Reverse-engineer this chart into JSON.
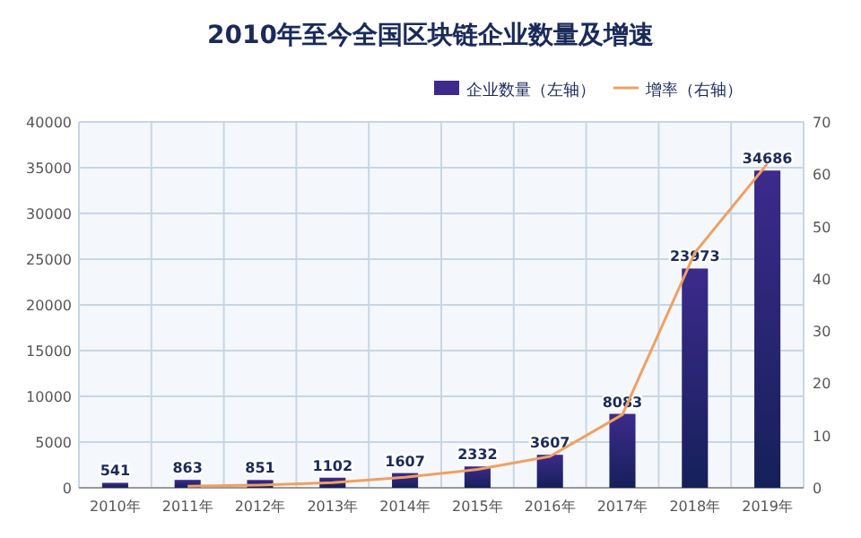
{
  "chart_data": {
    "type": "bar",
    "title": "2010年至今全国区块链企业数量及增速",
    "categories": [
      "2010年",
      "2011年",
      "2012年",
      "2013年",
      "2014年",
      "2015年",
      "2016年",
      "2017年",
      "2018年",
      "2019年"
    ],
    "series": [
      {
        "name": "企业数量（左轴）",
        "color": "#3d2a8c",
        "values": [
          541,
          863,
          851,
          1102,
          1607,
          2332,
          3607,
          8083,
          23973,
          34686
        ],
        "value_labels": [
          "541",
          "863",
          "851",
          "1102",
          "1607",
          "2332",
          "3607",
          "8083",
          "23973",
          "34686"
        ]
      },
      {
        "name": "增率（右轴）",
        "type": "line",
        "axis": "y2",
        "color": "#f0a060",
        "values": [
          null,
          0.3,
          0.5,
          1,
          2,
          3.5,
          6,
          14,
          45,
          62
        ]
      }
    ],
    "ylim": [
      0,
      40000
    ],
    "yticks": [
      0,
      5000,
      10000,
      15000,
      20000,
      25000,
      30000,
      35000,
      40000
    ],
    "y2lim": [
      0,
      70
    ],
    "y2ticks": [
      0,
      10,
      20,
      30,
      40,
      50,
      60,
      70
    ],
    "grid": true,
    "legend": "top right"
  }
}
